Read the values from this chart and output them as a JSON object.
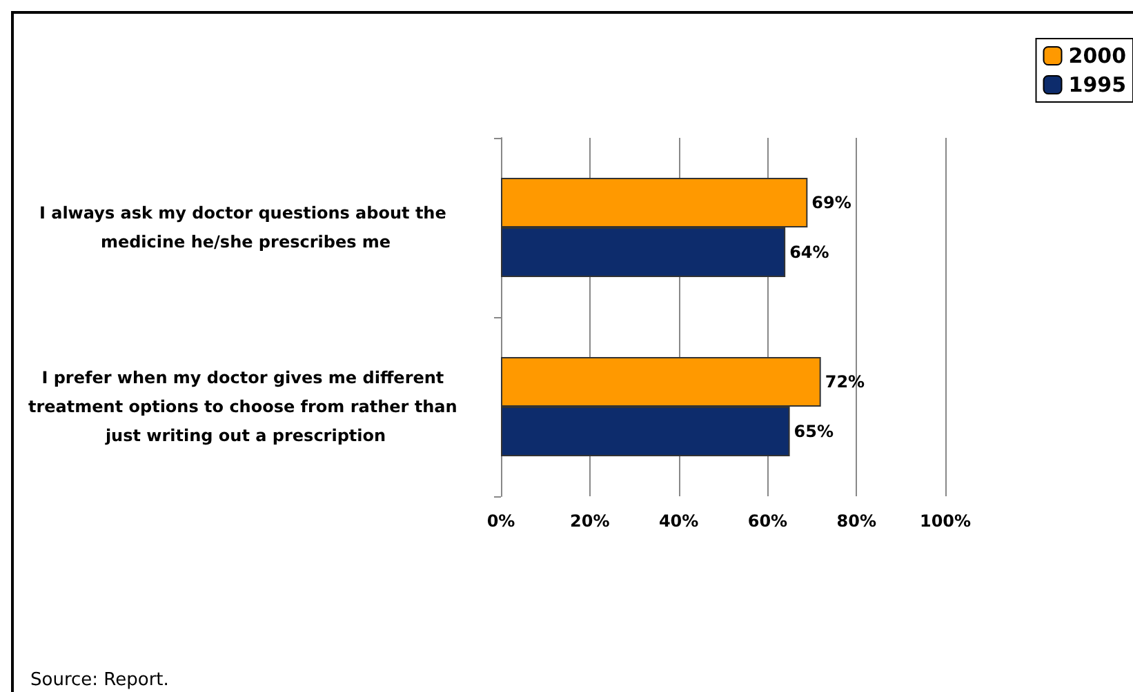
{
  "chart_data": {
    "type": "bar",
    "orientation": "horizontal",
    "categories": [
      "I always ask my doctor questions about the medicine he/she prescribes me",
      "I prefer when my doctor gives me different treatment options to choose from rather than just writing out a prescription"
    ],
    "series": [
      {
        "name": "2000",
        "color": "#ff9900",
        "values": [
          69,
          72
        ],
        "value_labels": [
          "69%",
          "72%"
        ]
      },
      {
        "name": "1995",
        "color": "#0d2c6c",
        "values": [
          64,
          65
        ],
        "value_labels": [
          "64%",
          "65%"
        ]
      }
    ],
    "xlim": [
      0,
      100
    ],
    "xticks": [
      {
        "value": 0,
        "label": "0%"
      },
      {
        "value": 20,
        "label": "20%"
      },
      {
        "value": 40,
        "label": "40%"
      },
      {
        "value": 60,
        "label": "60%"
      },
      {
        "value": 80,
        "label": "80%"
      },
      {
        "value": 100,
        "label": "100%"
      }
    ],
    "grid": "x",
    "legend": "top right",
    "annotations": [
      "Source: Report."
    ]
  }
}
